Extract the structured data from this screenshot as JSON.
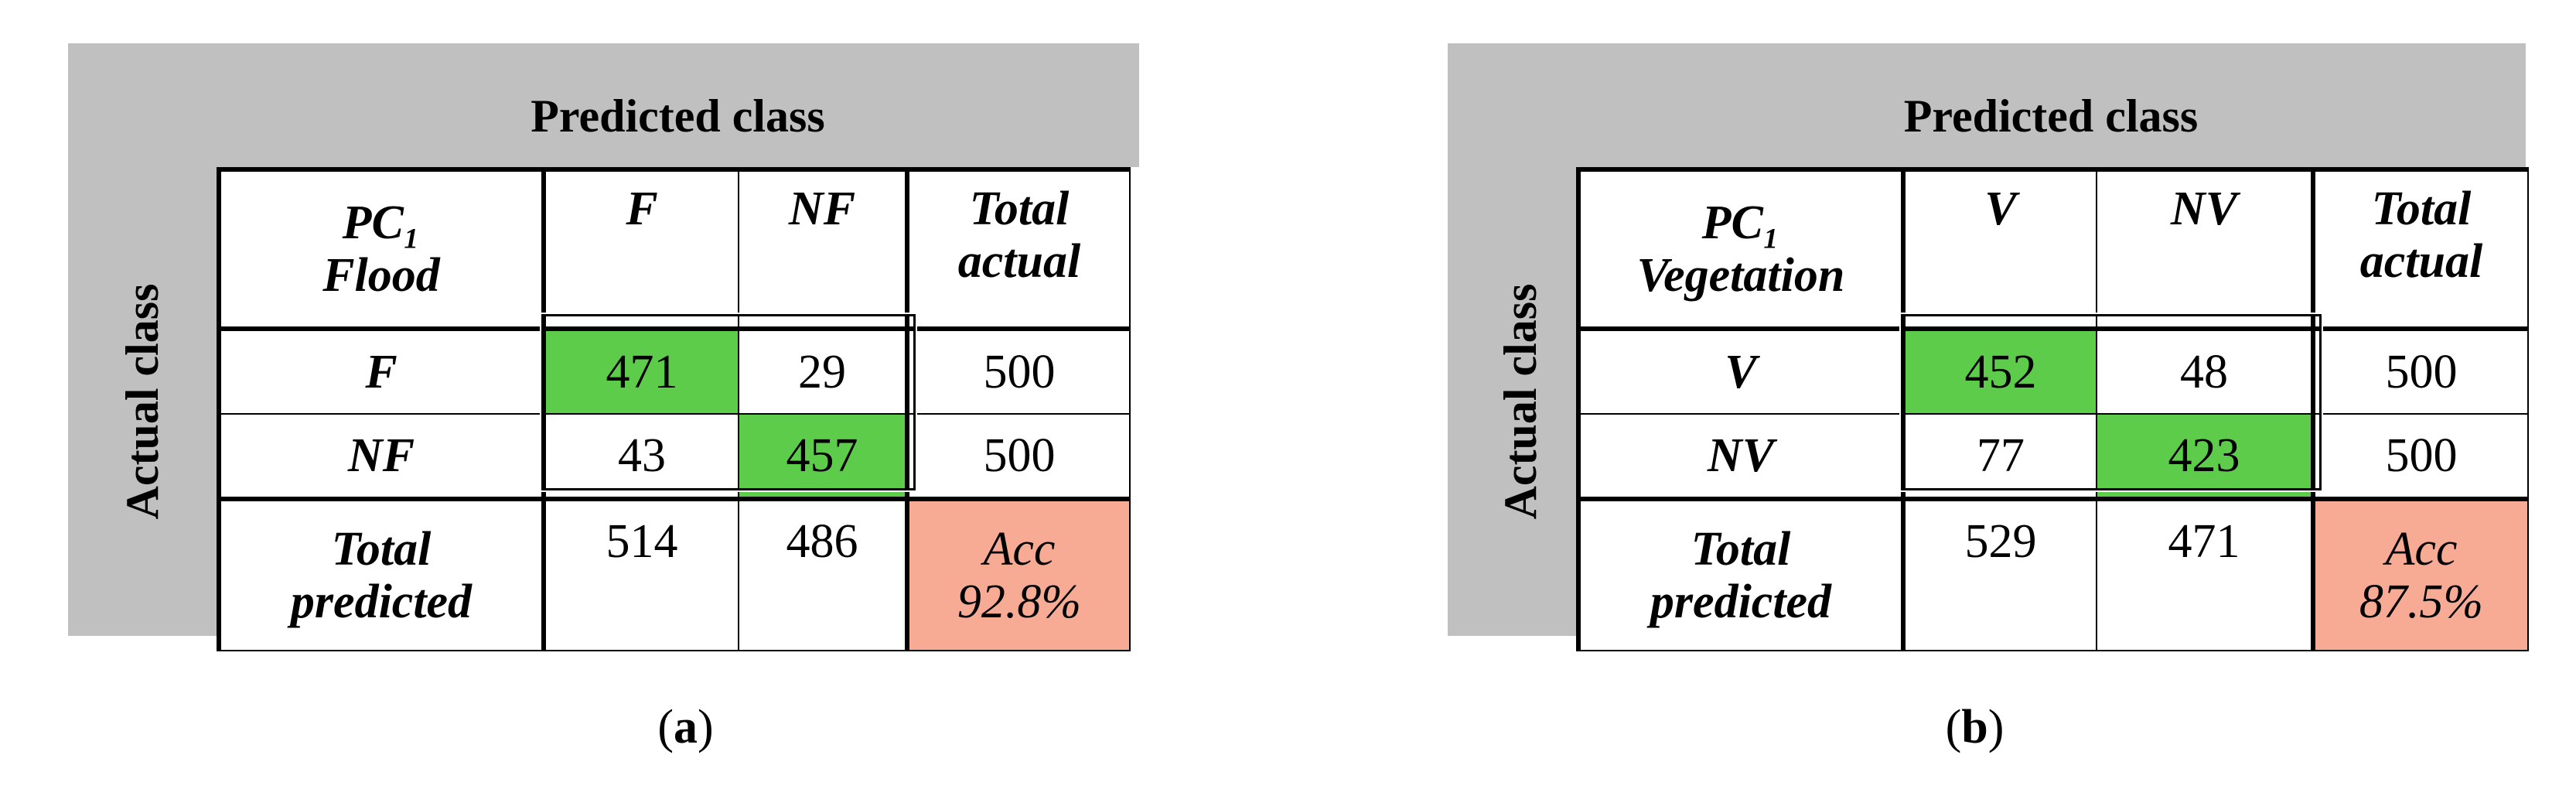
{
  "panels": [
    {
      "predicted_label": "Predicted class",
      "actual_label": "Actual class",
      "corner_line1": "PC₁",
      "corner_line2": "Flood",
      "col_headers": [
        "F",
        "NF"
      ],
      "total_actual_line1": "Total",
      "total_actual_line2": "actual",
      "rows": [
        {
          "label": "F",
          "values": [
            "471",
            "29"
          ],
          "total": "500"
        },
        {
          "label": "NF",
          "values": [
            "43",
            "457"
          ],
          "total": "500"
        }
      ],
      "total_predicted_line1": "Total",
      "total_predicted_line2": "predicted",
      "totals": [
        "514",
        "486"
      ],
      "acc_label": "Acc",
      "acc_value": "92.8%",
      "caption": "a"
    },
    {
      "predicted_label": "Predicted class",
      "actual_label": "Actual class",
      "corner_line1": "PC₁",
      "corner_line2": "Vegetation",
      "col_headers": [
        "V",
        "NV"
      ],
      "total_actual_line1": "Total",
      "total_actual_line2": "actual",
      "rows": [
        {
          "label": "V",
          "values": [
            "452",
            "48"
          ],
          "total": "500"
        },
        {
          "label": "NV",
          "values": [
            "77",
            "423"
          ],
          "total": "500"
        }
      ],
      "total_predicted_line1": "Total",
      "total_predicted_line2": "predicted",
      "totals": [
        "529",
        "471"
      ],
      "acc_label": "Acc",
      "acc_value": "87.5%",
      "caption": "b"
    }
  ],
  "colors": {
    "correct": "#5ccc4a",
    "accuracy": "#f8ab94",
    "frame": "#c0c0c0"
  }
}
